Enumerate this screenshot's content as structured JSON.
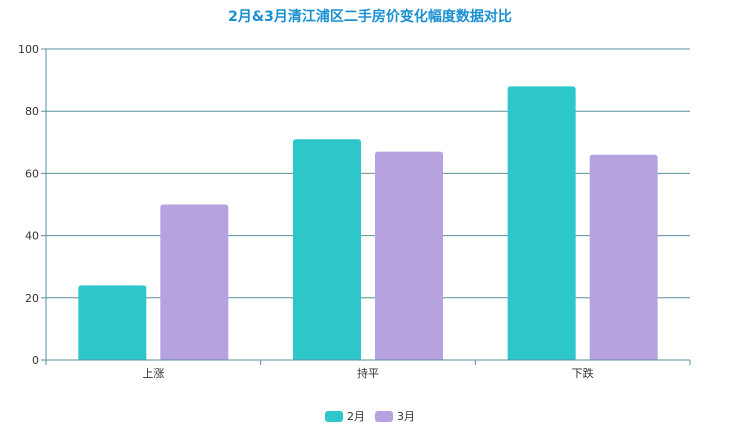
{
  "chart_data": {
    "type": "bar",
    "title": "2月&3月清江浦区二手房价变化幅度数据对比",
    "categories": [
      "上涨",
      "持平",
      "下跌"
    ],
    "series": [
      {
        "name": "2月",
        "values": [
          24,
          71,
          88
        ],
        "color": "#2ec7c9"
      },
      {
        "name": "3月",
        "values": [
          50,
          67,
          66
        ],
        "color": "#b6a2de"
      }
    ],
    "ylim": [
      0,
      100
    ],
    "yticks": [
      "0",
      "20",
      "40",
      "60",
      "80",
      "100"
    ],
    "grid": true,
    "legend_position": "bottom-center",
    "axis_color": "#5b8fa0",
    "grid_color": "#5b8fa0"
  }
}
